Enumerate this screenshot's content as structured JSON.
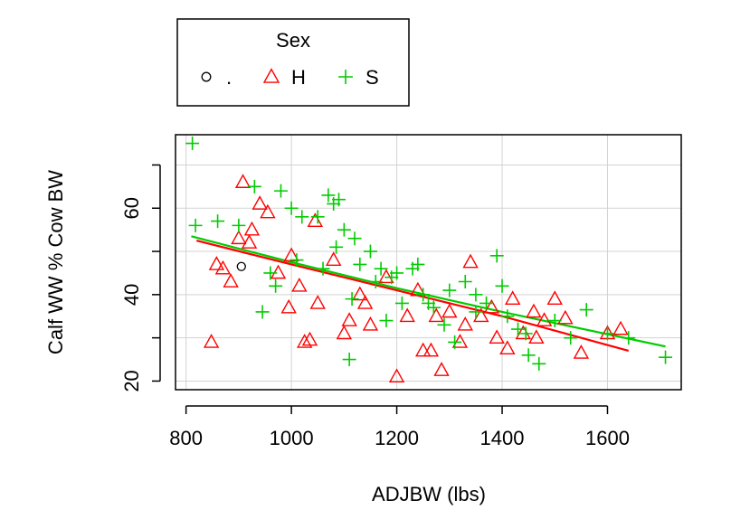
{
  "chart_data": {
    "type": "scatter",
    "title": "",
    "xlabel": "ADJBW (lbs)",
    "ylabel": "Calf WW % Cow BW",
    "xlim": [
      780,
      1740
    ],
    "ylim": [
      18,
      77
    ],
    "x_ticks": [
      800,
      1000,
      1200,
      1400,
      1600
    ],
    "y_ticks": [
      20,
      40,
      60
    ],
    "y_tick_labels": [
      "20",
      "40",
      "60"
    ],
    "y_minor_ticks": [
      30,
      50,
      70
    ],
    "grid": true,
    "legend": {
      "title": "Sex",
      "placement": "top-left outside plot",
      "entries": [
        {
          "label": ".",
          "marker": "circle",
          "color": "#000000"
        },
        {
          "label": "H",
          "marker": "triangle",
          "color": "#ff0000"
        },
        {
          "label": "S",
          "marker": "plus",
          "color": "#00cc00"
        }
      ]
    },
    "series": [
      {
        "name": ".",
        "marker": "circle",
        "color": "#000000",
        "x": [
          905
        ],
        "y": [
          46.5
        ]
      },
      {
        "name": "H",
        "marker": "triangle",
        "color": "#ff0000",
        "x": [
          908,
          848,
          858,
          870,
          885,
          900,
          920,
          940,
          955,
          1000,
          1025,
          1035,
          1050,
          1100,
          1110,
          1130,
          1150,
          1200,
          1220,
          1250,
          1265,
          1285,
          1300,
          1320,
          1340,
          1360,
          1390,
          1410,
          1440,
          1460,
          1480,
          1500,
          1520,
          1550,
          1600,
          1625,
          925,
          975,
          1015,
          1080,
          1140,
          1180,
          1240,
          1275,
          1330,
          1380,
          1420,
          1465,
          1045,
          995
        ],
        "y": [
          66,
          29,
          47,
          46,
          43,
          53,
          52,
          61,
          59,
          49,
          29,
          29.5,
          38,
          31,
          34,
          40,
          33,
          21,
          35,
          27,
          27,
          22.5,
          36,
          29,
          47.5,
          35,
          30,
          27.5,
          31,
          36,
          34,
          39,
          34.5,
          26.5,
          31,
          32,
          55,
          45,
          42,
          48,
          38,
          44,
          41,
          35,
          33,
          37,
          39,
          30,
          57,
          37
        ]
      },
      {
        "name": "S",
        "marker": "plus",
        "color": "#00cc00",
        "x": [
          812,
          818,
          860,
          900,
          930,
          960,
          980,
          1000,
          1020,
          1050,
          1070,
          1080,
          1090,
          1100,
          1110,
          1130,
          1150,
          1170,
          1190,
          1210,
          1230,
          1250,
          1270,
          1290,
          1310,
          1330,
          1350,
          1370,
          1390,
          1410,
          1430,
          1450,
          1470,
          1500,
          1530,
          1560,
          1600,
          1640,
          1710,
          945,
          970,
          1010,
          1060,
          1085,
          1115,
          1160,
          1200,
          1260,
          1300,
          1350,
          1400,
          1445,
          1240,
          1180,
          1120
        ],
        "y": [
          75,
          56,
          57,
          56,
          65,
          45,
          64,
          60,
          58,
          58,
          63,
          61,
          62,
          55,
          25,
          47,
          50,
          46,
          44,
          38,
          46,
          40,
          37,
          33,
          29,
          43,
          40,
          38,
          49,
          35,
          32,
          26,
          24,
          34,
          30,
          36.5,
          31,
          30,
          25.5,
          36,
          42,
          48,
          46,
          51,
          39,
          43,
          45,
          38,
          41,
          36,
          42,
          31,
          47,
          34,
          53
        ]
      }
    ],
    "trend_lines": [
      {
        "name": "H",
        "color": "#ff0000",
        "points": [
          [
            820,
            52.5
          ],
          [
            1000,
            47
          ],
          [
            1200,
            41
          ],
          [
            1400,
            35
          ],
          [
            1640,
            27
          ]
        ]
      },
      {
        "name": "S",
        "color": "#00cc00",
        "points": [
          [
            810,
            53.5
          ],
          [
            1000,
            47.5
          ],
          [
            1200,
            41.5
          ],
          [
            1400,
            36
          ],
          [
            1710,
            28
          ]
        ]
      }
    ]
  }
}
